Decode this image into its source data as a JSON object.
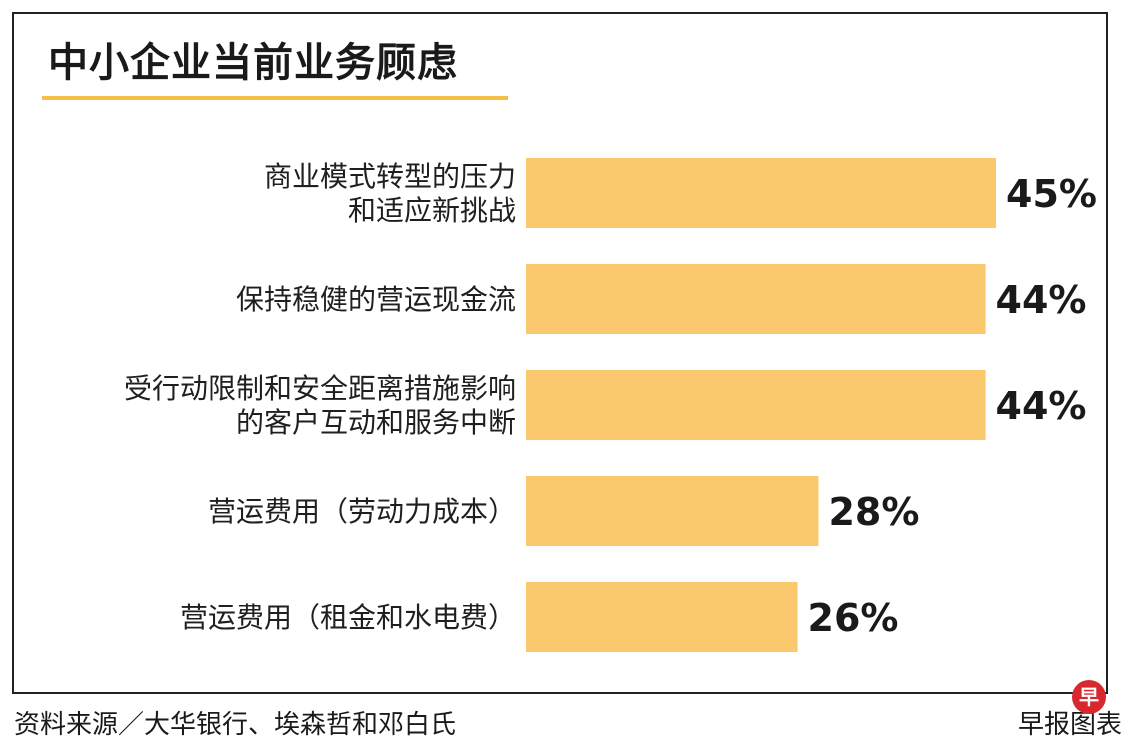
{
  "title": "中小企业当前业务顾虑",
  "source": "资料来源／大华银行、埃森哲和邓白氏",
  "credit": "早报图表",
  "logo_char": "早",
  "colors": {
    "bar": "#FAC96E",
    "accent": "#F5C04A",
    "logo": "#D7282F"
  },
  "chart_data": {
    "type": "bar",
    "orientation": "horizontal",
    "title": "中小企业当前业务顾虑",
    "xlabel": "",
    "ylabel": "",
    "xlim": [
      0,
      45
    ],
    "grid": false,
    "legend": "none",
    "categories": [
      [
        "商业模式转型的压力",
        "和适应新挑战"
      ],
      [
        "保持稳健的营运现金流"
      ],
      [
        "受行动限制和安全距离措施影响",
        "的客户互动和服务中断"
      ],
      [
        "营运费用（劳动力成本）"
      ],
      [
        "营运费用（租金和水电费）"
      ]
    ],
    "values": [
      45,
      44,
      44,
      28,
      26
    ],
    "value_labels": [
      "45%",
      "44%",
      "44%",
      "28%",
      "26%"
    ]
  }
}
